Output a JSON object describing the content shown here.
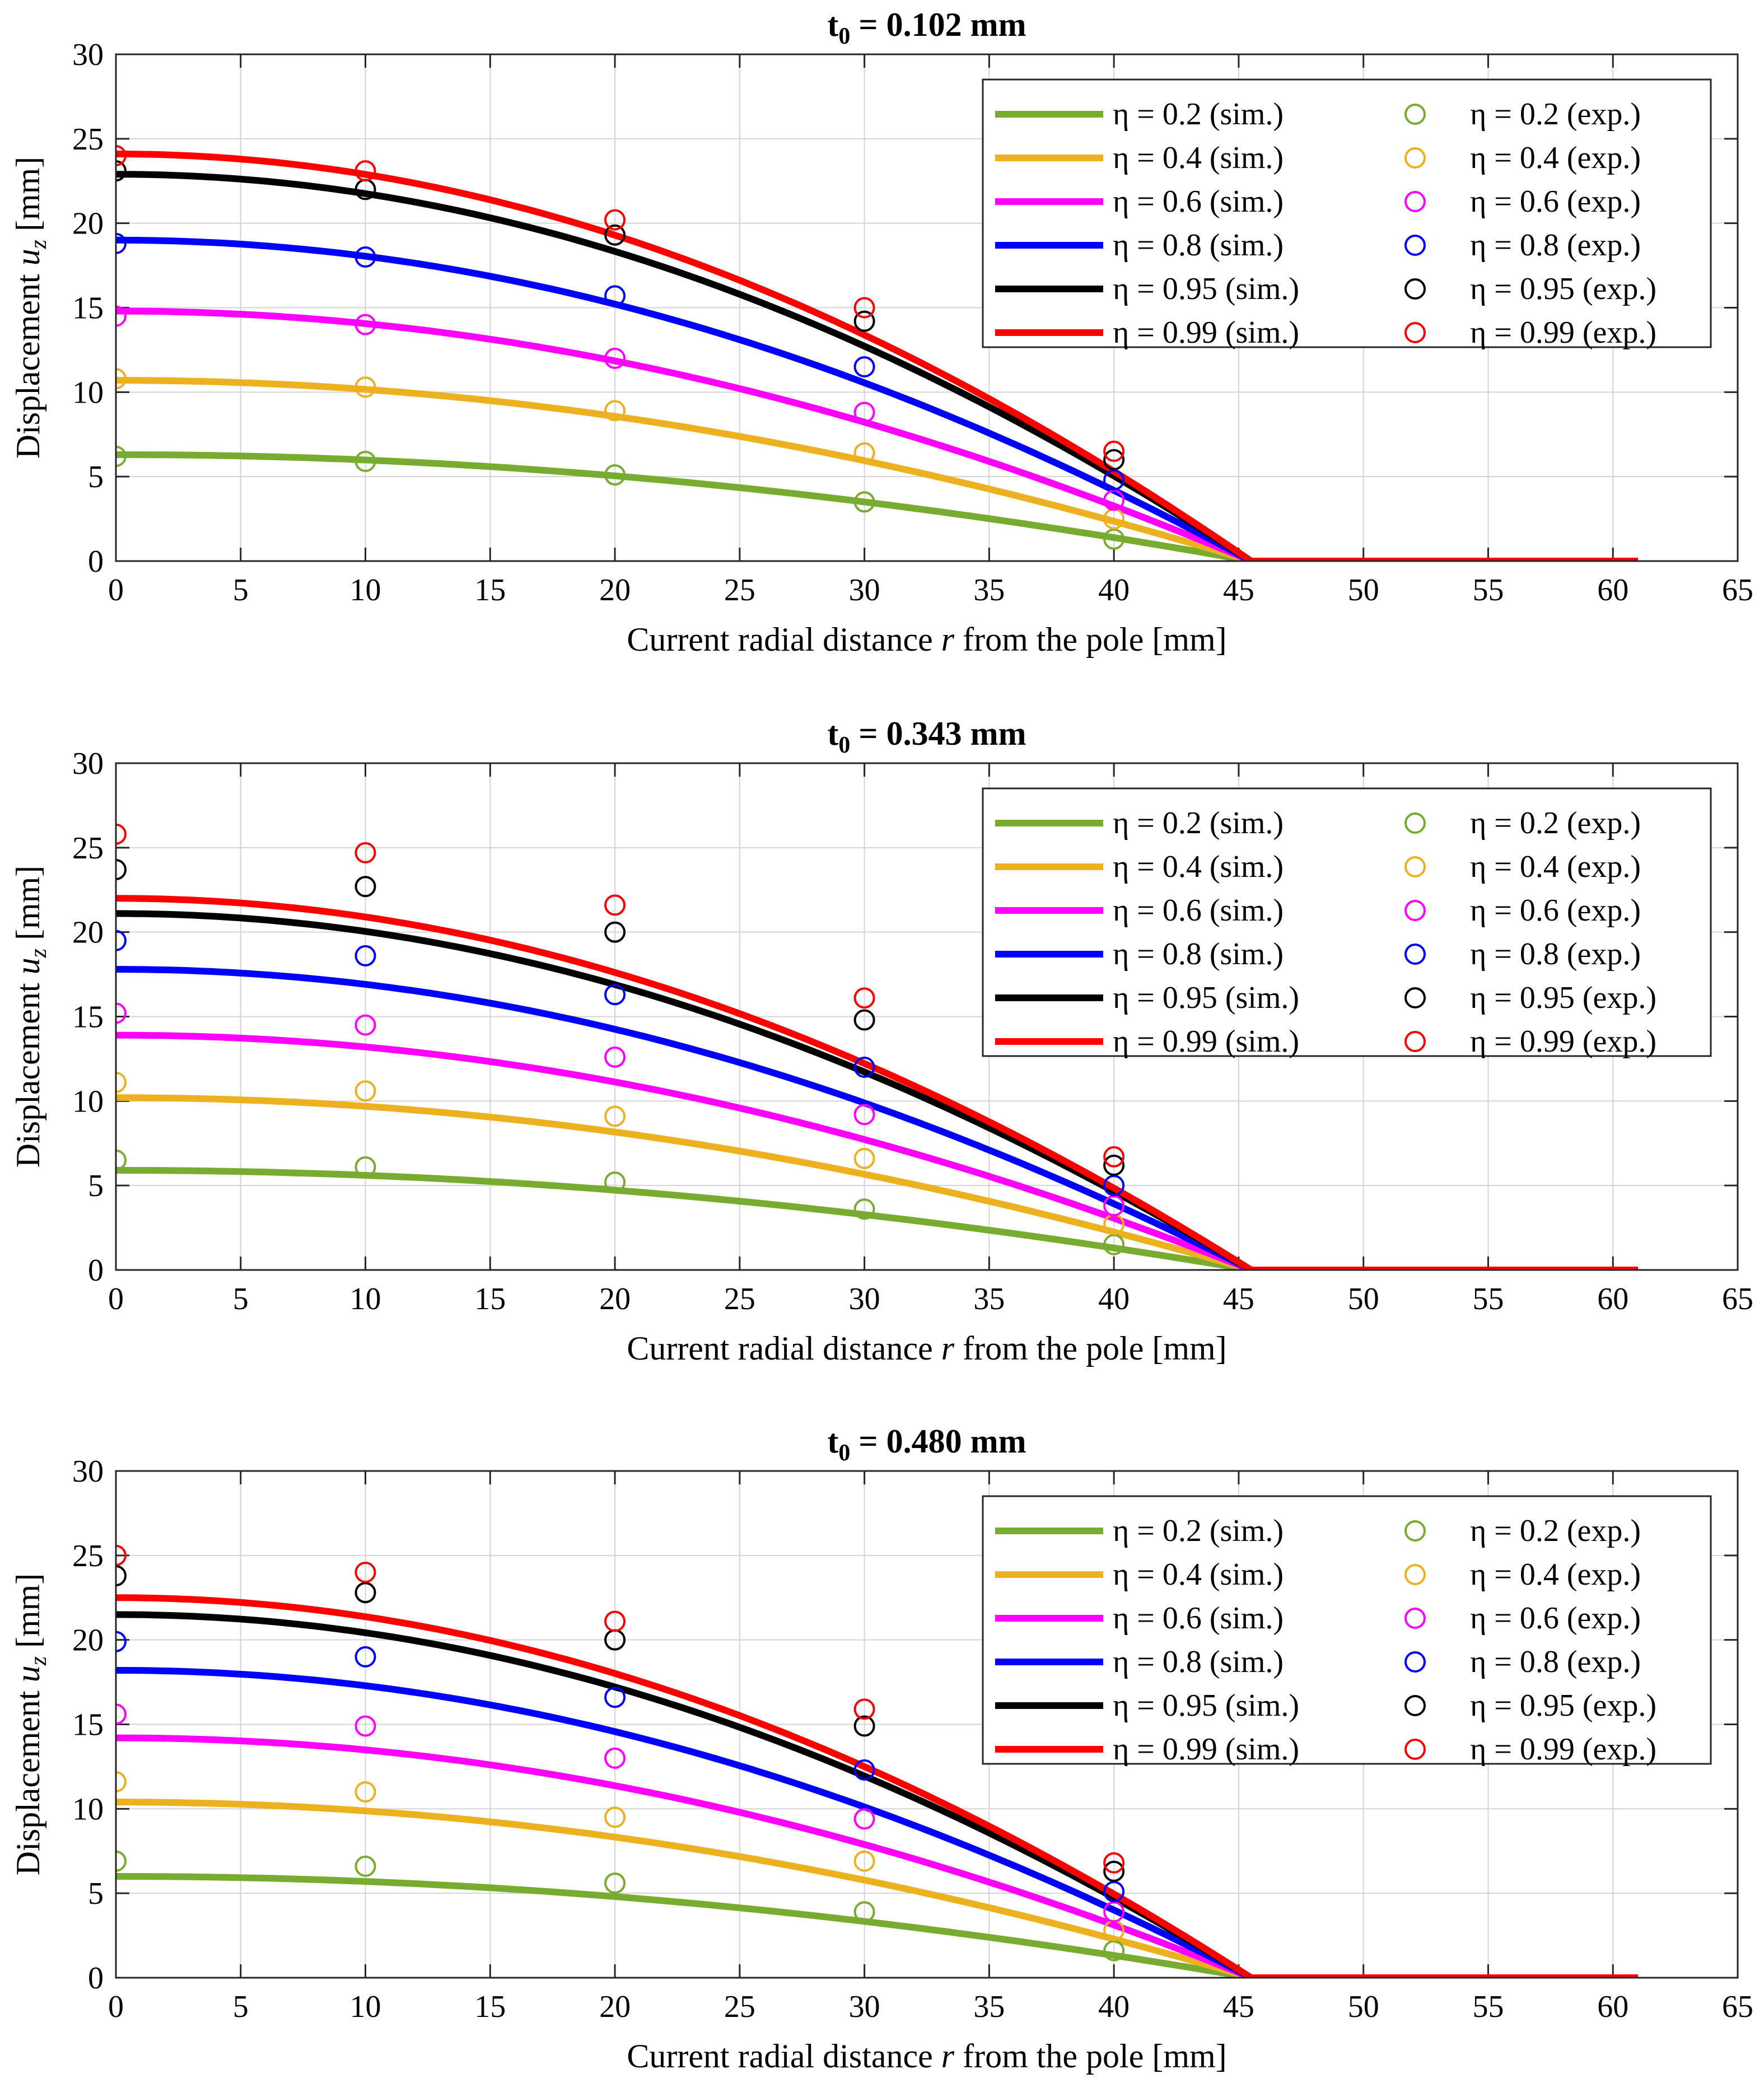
{
  "chart_data": [
    {
      "type": "line",
      "title": "t0 = 0.102 mm",
      "title_main": "t",
      "title_sub": "0",
      "title_rest": " = 0.102 mm",
      "xlabel": "Current radial distance r from the pole [mm]",
      "xlabel_pre": "Current radial distance ",
      "xlabel_var": "r",
      "xlabel_post": " from the pole [mm]",
      "ylabel": "Displacement uz [mm]",
      "ylabel_pre": "Displacement ",
      "ylabel_var": "u",
      "ylabel_sub": "z",
      "ylabel_post": " [mm]",
      "xlim": [
        0,
        65
      ],
      "ylim": [
        0,
        30
      ],
      "xticks": [
        0,
        5,
        10,
        15,
        20,
        25,
        30,
        35,
        40,
        45,
        50,
        55,
        60,
        65
      ],
      "yticks": [
        0,
        5,
        10,
        15,
        20,
        25,
        30
      ],
      "grid": true,
      "legend_position": "top-right",
      "contact_radius": 45.5,
      "x_end": 61,
      "exp_x": [
        0,
        10,
        20,
        30,
        40
      ],
      "series": [
        {
          "name": "η = 0.2 (sim.)",
          "exp_name": "η = 0.2 (exp.)",
          "eta": "0.2",
          "color": "#77ac30",
          "sim_peak": 6.3,
          "exp": [
            6.2,
            5.9,
            5.1,
            3.5,
            1.3
          ]
        },
        {
          "name": "η = 0.4 (sim.)",
          "exp_name": "η = 0.4 (exp.)",
          "eta": "0.4",
          "color": "#edb120",
          "sim_peak": 10.7,
          "exp": [
            10.8,
            10.3,
            8.9,
            6.4,
            2.5
          ]
        },
        {
          "name": "η = 0.6 (sim.)",
          "exp_name": "η = 0.6 (exp.)",
          "eta": "0.6",
          "color": "#ff00ff",
          "sim_peak": 14.8,
          "exp": [
            14.5,
            14.0,
            12.0,
            8.8,
            3.6
          ]
        },
        {
          "name": "η = 0.8 (sim.)",
          "exp_name": "η = 0.8 (exp.)",
          "eta": "0.8",
          "color": "#0000ff",
          "sim_peak": 19.0,
          "exp": [
            18.8,
            18.0,
            15.7,
            11.5,
            4.8
          ]
        },
        {
          "name": "η = 0.95 (sim.)",
          "exp_name": "η = 0.95 (exp.)",
          "eta": "0.95",
          "color": "#000000",
          "sim_peak": 22.9,
          "exp": [
            23.1,
            22.0,
            19.3,
            14.2,
            6.0
          ]
        },
        {
          "name": "η = 0.99 (sim.)",
          "exp_name": "η = 0.99 (exp.)",
          "eta": "0.99",
          "color": "#ff0000",
          "sim_peak": 24.1,
          "exp": [
            24.0,
            23.1,
            20.2,
            15.0,
            6.5
          ]
        }
      ]
    },
    {
      "type": "line",
      "title": "t0 = 0.343 mm",
      "title_main": "t",
      "title_sub": "0",
      "title_rest": " = 0.343 mm",
      "xlabel": "Current radial distance r from the pole [mm]",
      "xlabel_pre": "Current radial distance ",
      "xlabel_var": "r",
      "xlabel_post": " from the pole [mm]",
      "ylabel": "Displacement uz [mm]",
      "ylabel_pre": "Displacement ",
      "ylabel_var": "u",
      "ylabel_sub": "z",
      "ylabel_post": " [mm]",
      "xlim": [
        0,
        65
      ],
      "ylim": [
        0,
        30
      ],
      "xticks": [
        0,
        5,
        10,
        15,
        20,
        25,
        30,
        35,
        40,
        45,
        50,
        55,
        60,
        65
      ],
      "yticks": [
        0,
        5,
        10,
        15,
        20,
        25,
        30
      ],
      "grid": true,
      "legend_position": "top-right",
      "contact_radius": 45.5,
      "x_end": 61,
      "exp_x": [
        0,
        10,
        20,
        30,
        40
      ],
      "series": [
        {
          "name": "η = 0.2 (sim.)",
          "exp_name": "η = 0.2 (exp.)",
          "eta": "0.2",
          "color": "#77ac30",
          "sim_peak": 5.9,
          "exp": [
            6.5,
            6.1,
            5.2,
            3.6,
            1.5
          ]
        },
        {
          "name": "η = 0.4 (sim.)",
          "exp_name": "η = 0.4 (exp.)",
          "eta": "0.4",
          "color": "#edb120",
          "sim_peak": 10.2,
          "exp": [
            11.1,
            10.6,
            9.1,
            6.6,
            2.7
          ]
        },
        {
          "name": "η = 0.6 (sim.)",
          "exp_name": "η = 0.6 (exp.)",
          "eta": "0.6",
          "color": "#ff00ff",
          "sim_peak": 13.9,
          "exp": [
            15.2,
            14.5,
            12.6,
            9.2,
            3.8
          ]
        },
        {
          "name": "η = 0.8 (sim.)",
          "exp_name": "η = 0.8 (exp.)",
          "eta": "0.8",
          "color": "#0000ff",
          "sim_peak": 17.8,
          "exp": [
            19.5,
            18.6,
            16.3,
            12.0,
            5.0
          ]
        },
        {
          "name": "η = 0.95 (sim.)",
          "exp_name": "η = 0.95 (exp.)",
          "eta": "0.95",
          "color": "#000000",
          "sim_peak": 21.1,
          "exp": [
            23.7,
            22.7,
            20.0,
            14.8,
            6.2
          ]
        },
        {
          "name": "η = 0.99 (sim.)",
          "exp_name": "η = 0.99 (exp.)",
          "eta": "0.99",
          "color": "#ff0000",
          "sim_peak": 22.0,
          "exp": [
            25.8,
            24.7,
            21.6,
            16.1,
            6.7
          ]
        }
      ]
    },
    {
      "type": "line",
      "title": "t0 = 0.480 mm",
      "title_main": "t",
      "title_sub": "0",
      "title_rest": " = 0.480 mm",
      "xlabel": "Current radial distance r from the pole [mm]",
      "xlabel_pre": "Current radial distance ",
      "xlabel_var": "r",
      "xlabel_post": " from the pole [mm]",
      "ylabel": "Displacement uz [mm]",
      "ylabel_pre": "Displacement ",
      "ylabel_var": "u",
      "ylabel_sub": "z",
      "ylabel_post": " [mm]",
      "xlim": [
        0,
        65
      ],
      "ylim": [
        0,
        30
      ],
      "xticks": [
        0,
        5,
        10,
        15,
        20,
        25,
        30,
        35,
        40,
        45,
        50,
        55,
        60,
        65
      ],
      "yticks": [
        0,
        5,
        10,
        15,
        20,
        25,
        30
      ],
      "grid": true,
      "legend_position": "top-right",
      "contact_radius": 45.5,
      "x_end": 61,
      "exp_x": [
        0,
        10,
        20,
        30,
        40
      ],
      "series": [
        {
          "name": "η = 0.2 (sim.)",
          "exp_name": "η = 0.2 (exp.)",
          "eta": "0.2",
          "color": "#77ac30",
          "sim_peak": 6.0,
          "exp": [
            6.9,
            6.6,
            5.6,
            3.9,
            1.6
          ]
        },
        {
          "name": "η = 0.4 (sim.)",
          "exp_name": "η = 0.4 (exp.)",
          "eta": "0.4",
          "color": "#edb120",
          "sim_peak": 10.4,
          "exp": [
            11.6,
            11.0,
            9.5,
            6.9,
            2.8
          ]
        },
        {
          "name": "η = 0.6 (sim.)",
          "exp_name": "η = 0.6 (exp.)",
          "eta": "0.6",
          "color": "#ff00ff",
          "sim_peak": 14.2,
          "exp": [
            15.6,
            14.9,
            13.0,
            9.4,
            3.9
          ]
        },
        {
          "name": "η = 0.8 (sim.)",
          "exp_name": "η = 0.8 (exp.)",
          "eta": "0.8",
          "color": "#0000ff",
          "sim_peak": 18.2,
          "exp": [
            19.9,
            19.0,
            16.6,
            12.3,
            5.1
          ]
        },
        {
          "name": "η = 0.95 (sim.)",
          "exp_name": "η = 0.95 (exp.)",
          "eta": "0.95",
          "color": "#000000",
          "sim_peak": 21.5,
          "exp": [
            23.8,
            22.8,
            20.0,
            14.9,
            6.3
          ]
        },
        {
          "name": "η = 0.99 (sim.)",
          "exp_name": "η = 0.99 (exp.)",
          "eta": "0.99",
          "color": "#ff0000",
          "sim_peak": 22.5,
          "exp": [
            25.0,
            24.0,
            21.1,
            15.9,
            6.8
          ]
        }
      ]
    }
  ]
}
